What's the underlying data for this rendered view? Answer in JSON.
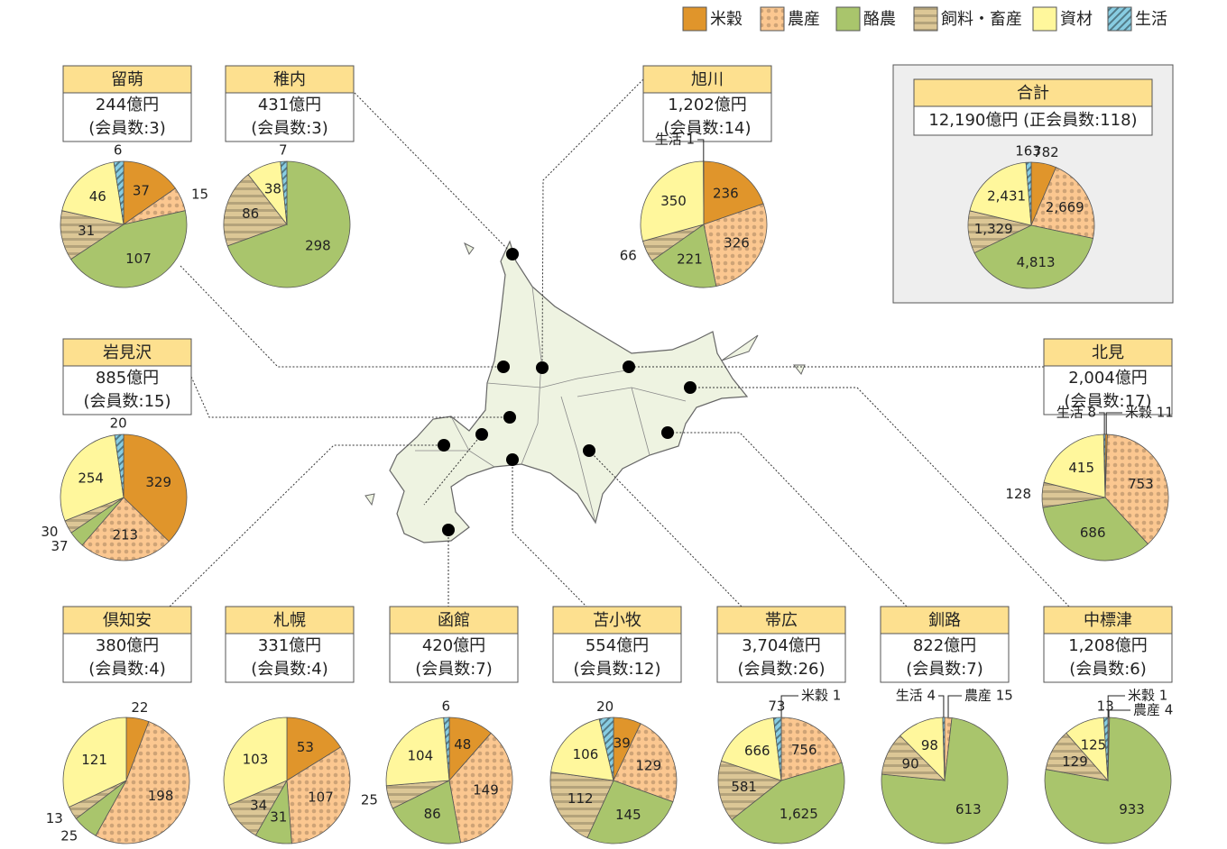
{
  "legend": {
    "categories": [
      "米穀",
      "農産",
      "酪農",
      "飼料・畜産",
      "資材",
      "生活"
    ],
    "colors": [
      "#e0952b",
      "#fbc790",
      "#a9c56c",
      "#dcc796",
      "#fff79c",
      "#88cde2"
    ],
    "patterns": [
      "solid",
      "dots",
      "solid",
      "stripes",
      "solid",
      "hatch"
    ]
  },
  "chart_data": [
    {
      "type": "pie",
      "title": "留萌",
      "info": [
        "244億円",
        "(会員数:3)"
      ],
      "values": [
        37,
        15,
        107,
        31,
        46,
        6
      ],
      "value_labels": [
        "37",
        "15",
        "107",
        "31",
        "46",
        "6"
      ]
    },
    {
      "type": "pie",
      "title": "稚内",
      "info": [
        "431億円",
        "(会員数:3)"
      ],
      "values": [
        null,
        null,
        298,
        86,
        38,
        7
      ],
      "value_labels": [
        null,
        null,
        "298",
        "86",
        "38",
        "7"
      ]
    },
    {
      "type": "pie",
      "title": "旭川",
      "info": [
        "1,202億円",
        "(会員数:14)"
      ],
      "values": [
        236,
        326,
        221,
        66,
        350,
        1
      ],
      "value_labels": [
        "236",
        "326",
        "221",
        "66",
        "350",
        "生活 1"
      ]
    },
    {
      "type": "pie",
      "title": "合計",
      "info": [
        "12,190億円 (正会員数:118)"
      ],
      "values": [
        782,
        2669,
        4813,
        1329,
        2431,
        163
      ],
      "value_labels": [
        "782",
        "2,669",
        "4,813",
        "1,329",
        "2,431",
        "163"
      ]
    },
    {
      "type": "pie",
      "title": "岩見沢",
      "info": [
        "885億円",
        "(会員数:15)"
      ],
      "values": [
        329,
        213,
        37,
        30,
        254,
        20
      ],
      "value_labels": [
        "329",
        "213",
        "37",
        "30",
        "254",
        "20"
      ]
    },
    {
      "type": "pie",
      "title": "北見",
      "info": [
        "2,004億円",
        "(会員数:17)"
      ],
      "values": [
        11,
        753,
        686,
        128,
        415,
        8
      ],
      "value_labels": [
        "米穀 11",
        "753",
        "686",
        "128",
        "415",
        "生活 8"
      ]
    },
    {
      "type": "pie",
      "title": "倶知安",
      "info": [
        "380億円",
        "(会員数:4)"
      ],
      "values": [
        22,
        198,
        25,
        13,
        121,
        null
      ],
      "value_labels": [
        "22",
        "198",
        "25",
        "13",
        "121",
        null
      ]
    },
    {
      "type": "pie",
      "title": "札幌",
      "info": [
        "331億円",
        "(会員数:4)"
      ],
      "values": [
        53,
        107,
        31,
        34,
        103,
        null
      ],
      "value_labels": [
        "53",
        "107",
        "31",
        "34",
        "103",
        null
      ]
    },
    {
      "type": "pie",
      "title": "函館",
      "info": [
        "420億円",
        "(会員数:7)"
      ],
      "values": [
        48,
        149,
        86,
        25,
        104,
        6
      ],
      "value_labels": [
        "48",
        "149",
        "86",
        "25",
        "104",
        "6"
      ]
    },
    {
      "type": "pie",
      "title": "苫小牧",
      "info": [
        "554億円",
        "(会員数:12)"
      ],
      "values": [
        39,
        129,
        145,
        112,
        106,
        20
      ],
      "value_labels": [
        "39",
        "129",
        "145",
        "112",
        "106",
        "20"
      ]
    },
    {
      "type": "pie",
      "title": "帯広",
      "info": [
        "3,704億円",
        "(会員数:26)"
      ],
      "values": [
        1,
        756,
        1625,
        581,
        666,
        73
      ],
      "value_labels": [
        "米穀 1",
        "756",
        "1,625",
        "581",
        "666",
        "73"
      ]
    },
    {
      "type": "pie",
      "title": "釧路",
      "info": [
        "822億円",
        "(会員数:7)"
      ],
      "values": [
        null,
        15,
        613,
        90,
        98,
        4
      ],
      "value_labels": [
        null,
        "農産 15",
        "613",
        "90",
        "98",
        "生活 4"
      ]
    },
    {
      "type": "pie",
      "title": "中標津",
      "info": [
        "1,208億円",
        "(会員数:6)"
      ],
      "values": [
        1,
        4,
        933,
        129,
        125,
        13
      ],
      "value_labels": [
        "米穀 1",
        "農産 4",
        "933",
        "129",
        "125",
        "13"
      ]
    }
  ]
}
